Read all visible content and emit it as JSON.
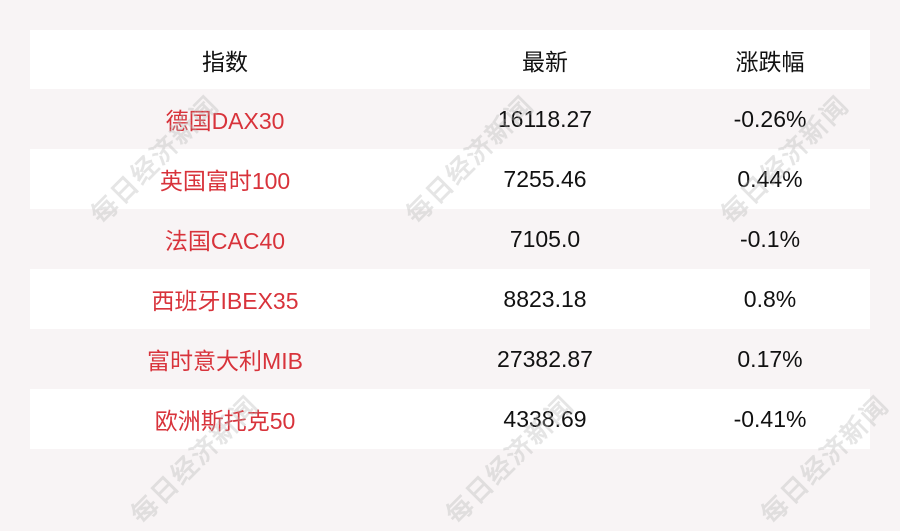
{
  "headers": [
    "指数",
    "最新",
    "涨跌幅"
  ],
  "rows": [
    {
      "name": "德国DAX30",
      "latest": "16118.27",
      "change": "-0.26%"
    },
    {
      "name": "英国富时100",
      "latest": "7255.46",
      "change": "0.44%"
    },
    {
      "name": "法国CAC40",
      "latest": "7105.0",
      "change": "-0.1%"
    },
    {
      "name": "西班牙IBEX35",
      "latest": "8823.18",
      "change": "0.8%"
    },
    {
      "name": "富时意大利MIB",
      "latest": "27382.87",
      "change": "0.17%"
    },
    {
      "name": "欧洲斯托克50",
      "latest": "4338.69",
      "change": "-0.41%"
    }
  ],
  "watermark": "每日经济新闻",
  "colors": {
    "name_text": "#d8333b",
    "background": "#f8f4f5",
    "stripe": "#ffffff"
  }
}
